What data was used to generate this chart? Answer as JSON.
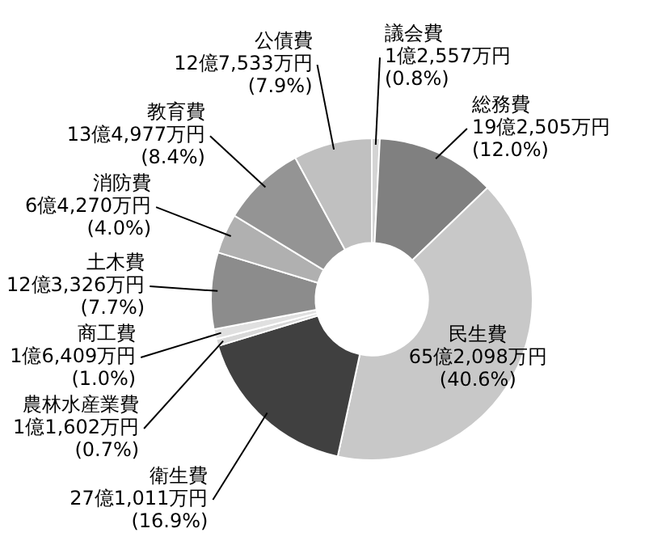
{
  "chart_data": {
    "type": "donut",
    "categories": [
      "議会費",
      "総務費",
      "民生費",
      "衛生費",
      "農林水産業費",
      "商工費",
      "土木費",
      "消防費",
      "教育費",
      "公債費"
    ],
    "values": [
      0.8,
      12.0,
      40.6,
      16.9,
      0.7,
      1.0,
      7.7,
      4.0,
      8.4,
      7.9
    ],
    "colors": [
      "#d4d4d4",
      "#808080",
      "#c8c8c8",
      "#404040",
      "#d8d8d8",
      "#e0e0e0",
      "#8c8c8c",
      "#b0b0b0",
      "#949494",
      "#c0c0c0"
    ],
    "value_labels": [
      "1億2,557万円\n(0.8%)",
      "19億2,505万円\n(12.0%)",
      "65億2,098万円\n(40.6%)",
      "27億1,011万円\n(16.9%)",
      "1億1,602万円\n(0.7%)",
      "1億6,409万円\n(1.0%)",
      "12億3,326万円\n(7.7%)",
      "6億4,270万円\n(4.0%)",
      "13億4,977万円\n(8.4%)",
      "12億7,533万円\n(7.9%)"
    ]
  }
}
